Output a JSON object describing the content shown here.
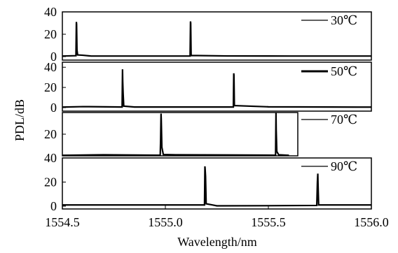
{
  "chart_data": {
    "type": "line",
    "xlabel": "Wavelength/nm",
    "ylabel": "PDL/dB",
    "xlim": [
      1554.5,
      1556.0
    ],
    "x_ticks": [
      "1554.5",
      "1555.0",
      "1555.5",
      "1556.0"
    ],
    "x_tick_values": [
      1554.5,
      1555.0,
      1555.5,
      1556.0
    ],
    "panels": [
      {
        "legend": "30℃",
        "ylim": [
          0,
          40
        ],
        "y_ticks": [
          "0",
          "20",
          "40"
        ],
        "y_tick_values": [
          0,
          20,
          40
        ],
        "points": [
          [
            1554.5,
            0.5
          ],
          [
            1554.566,
            0.8
          ],
          [
            1554.568,
            31.0
          ],
          [
            1554.569,
            29.0
          ],
          [
            1554.571,
            6.0
          ],
          [
            1554.574,
            1.5
          ],
          [
            1554.6,
            1.2
          ],
          [
            1554.64,
            0.5
          ],
          [
            1555.12,
            0.5
          ],
          [
            1555.122,
            31.5
          ],
          [
            1555.123,
            30.0
          ],
          [
            1555.125,
            1.0
          ],
          [
            1555.3,
            0.6
          ],
          [
            1555.6,
            0.5
          ],
          [
            1556.0,
            0.5
          ]
        ]
      },
      {
        "legend": "50℃",
        "ylim": [
          0,
          45
        ],
        "y_ticks": [
          "0",
          "20",
          "40"
        ],
        "y_tick_values": [
          0,
          20,
          40
        ],
        "points": [
          [
            1554.5,
            0.5
          ],
          [
            1554.6,
            1.0
          ],
          [
            1554.79,
            0.6
          ],
          [
            1554.792,
            38.0
          ],
          [
            1554.793,
            26.0
          ],
          [
            1554.795,
            14.0
          ],
          [
            1554.798,
            1.5
          ],
          [
            1554.85,
            0.6
          ],
          [
            1555.33,
            0.6
          ],
          [
            1555.332,
            34.0
          ],
          [
            1555.333,
            32.0
          ],
          [
            1555.335,
            2.0
          ],
          [
            1555.5,
            0.8
          ],
          [
            1555.8,
            0.6
          ],
          [
            1556.0,
            0.5
          ]
        ]
      },
      {
        "legend": "70℃",
        "ylim": [
          0,
          40
        ],
        "y_ticks": [
          "20"
        ],
        "y_tick_values": [
          20
        ],
        "points": [
          [
            1554.5,
            0.5
          ],
          [
            1554.7,
            1.0
          ],
          [
            1554.975,
            0.6
          ],
          [
            1554.977,
            15.0
          ],
          [
            1554.979,
            39.0
          ],
          [
            1554.98,
            34.0
          ],
          [
            1554.983,
            8.0
          ],
          [
            1554.99,
            1.2
          ],
          [
            1555.05,
            1.0
          ],
          [
            1555.3,
            0.8
          ],
          [
            1555.535,
            0.6
          ],
          [
            1555.537,
            40.0
          ],
          [
            1555.538,
            24.0
          ],
          [
            1555.541,
            4.0
          ],
          [
            1555.55,
            1.0
          ],
          [
            1555.6,
            0.5
          ]
        ]
      },
      {
        "legend": "90℃",
        "ylim": [
          0,
          40
        ],
        "y_ticks": [
          "0",
          "20",
          "40"
        ],
        "y_tick_values": [
          0,
          20,
          40
        ],
        "points": [
          [
            1554.5,
            1.0
          ],
          [
            1555.0,
            1.0
          ],
          [
            1555.19,
            1.0
          ],
          [
            1555.192,
            33.0
          ],
          [
            1555.193,
            31.0
          ],
          [
            1555.195,
            25.0
          ],
          [
            1555.198,
            2.0
          ],
          [
            1555.23,
            1.0
          ],
          [
            1555.25,
            0.3
          ],
          [
            1555.5,
            0.4
          ],
          [
            1555.735,
            0.6
          ],
          [
            1555.738,
            20.0
          ],
          [
            1555.74,
            27.0
          ],
          [
            1555.741,
            19.0
          ],
          [
            1555.744,
            1.0
          ],
          [
            1555.8,
            1.0
          ],
          [
            1556.0,
            1.0
          ]
        ]
      }
    ]
  }
}
